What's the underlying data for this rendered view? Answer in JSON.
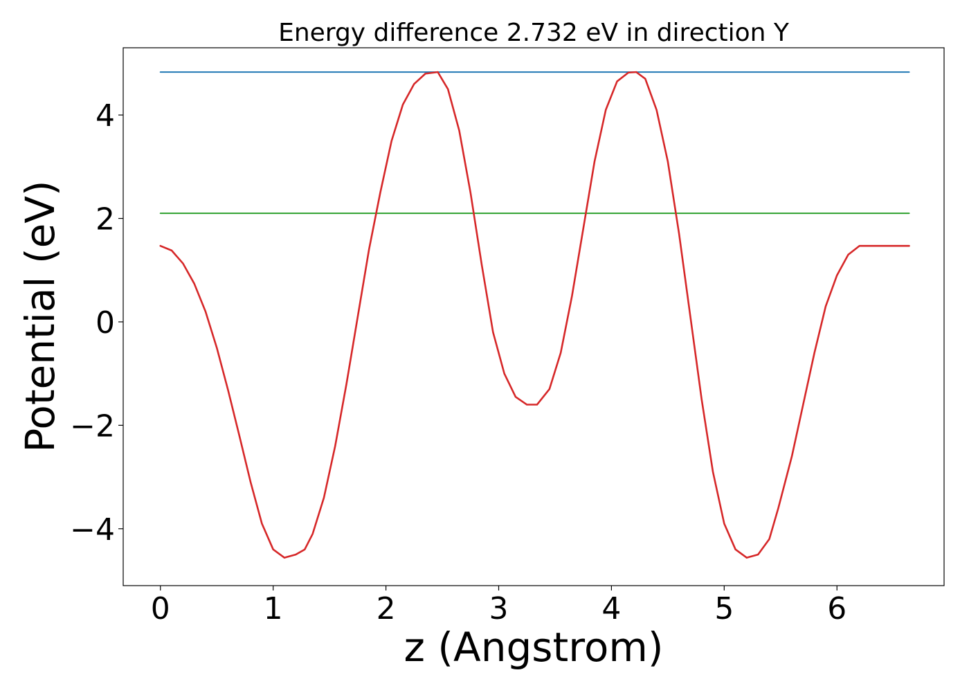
{
  "chart_data": {
    "type": "line",
    "title": "Energy difference 2.732 eV in direction Y",
    "xlabel": "z (Angstrom)",
    "ylabel": "Potential (eV)",
    "xlim": [
      -0.33,
      6.95
    ],
    "ylim": [
      -5.1,
      5.3
    ],
    "xticks": [
      0,
      1,
      2,
      3,
      4,
      5,
      6
    ],
    "xtick_labels": [
      "0",
      "1",
      "2",
      "3",
      "4",
      "5",
      "6"
    ],
    "yticks": [
      -4,
      -2,
      0,
      2,
      4
    ],
    "ytick_labels": [
      "−4",
      "−2",
      "0",
      "2",
      "4"
    ],
    "grid": false,
    "legend": "none",
    "series": [
      {
        "color": "#d62728",
        "x": [
          0.0,
          0.1,
          0.2,
          0.3,
          0.4,
          0.5,
          0.6,
          0.7,
          0.8,
          0.9,
          1.0,
          1.1,
          1.2,
          1.28,
          1.35,
          1.45,
          1.55,
          1.65,
          1.75,
          1.85,
          1.95,
          2.05,
          2.15,
          2.25,
          2.35,
          2.46,
          2.55,
          2.65,
          2.75,
          2.85,
          2.95,
          3.05,
          3.15,
          3.25,
          3.34,
          3.45,
          3.55,
          3.65,
          3.75,
          3.85,
          3.95,
          4.05,
          4.15,
          4.22,
          4.3,
          4.4,
          4.5,
          4.6,
          4.7,
          4.8,
          4.9,
          5.0,
          5.1,
          5.2,
          5.3,
          5.4,
          5.48,
          5.6,
          5.7,
          5.8,
          5.9,
          6.0,
          6.1,
          6.2,
          6.3,
          6.4,
          6.5,
          6.64
        ],
        "y": [
          1.47,
          1.38,
          1.13,
          0.74,
          0.2,
          -0.5,
          -1.32,
          -2.2,
          -3.1,
          -3.9,
          -4.4,
          -4.56,
          -4.5,
          -4.4,
          -4.1,
          -3.4,
          -2.4,
          -1.2,
          0.1,
          1.4,
          2.5,
          3.5,
          4.2,
          4.6,
          4.8,
          4.83,
          4.5,
          3.7,
          2.5,
          1.1,
          -0.2,
          -1.0,
          -1.45,
          -1.6,
          -1.6,
          -1.3,
          -0.6,
          0.5,
          1.8,
          3.1,
          4.1,
          4.65,
          4.82,
          4.83,
          4.7,
          4.1,
          3.1,
          1.7,
          0.1,
          -1.5,
          -2.9,
          -3.9,
          -4.4,
          -4.56,
          -4.5,
          -4.2,
          -3.6,
          -2.6,
          -1.6,
          -0.6,
          0.3,
          0.9,
          1.3,
          1.47,
          1.47,
          1.47,
          1.47,
          1.47
        ]
      },
      {
        "color": "#1f77b4",
        "x": [
          0.0,
          6.64
        ],
        "y": [
          4.83,
          4.83
        ]
      },
      {
        "color": "#2ca02c",
        "x": [
          0.0,
          6.64
        ],
        "y": [
          2.1,
          2.1
        ]
      }
    ]
  }
}
